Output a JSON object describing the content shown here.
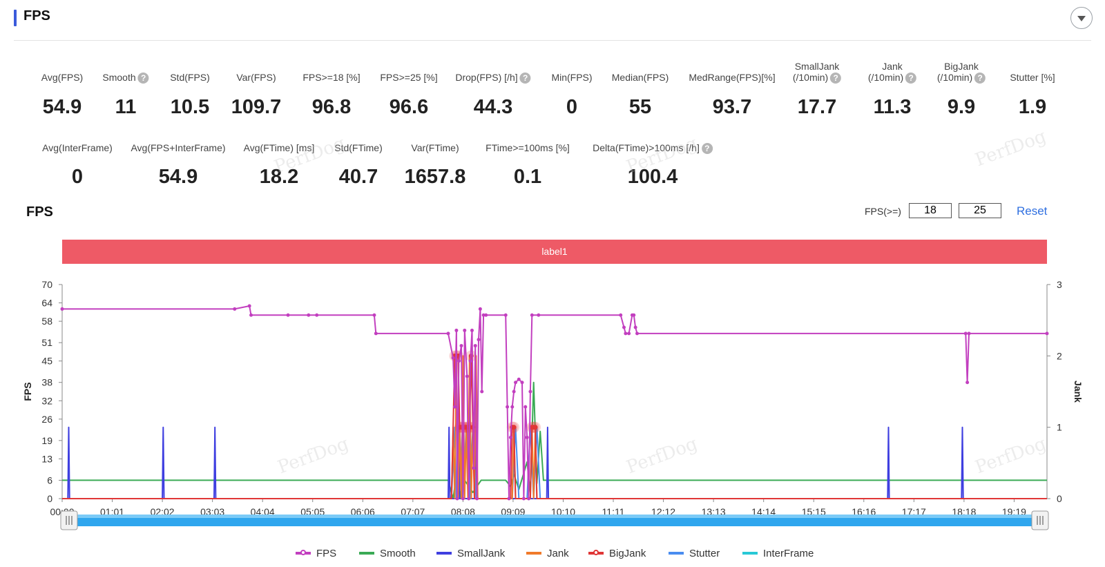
{
  "header": {
    "title": "FPS"
  },
  "metrics_row1": [
    {
      "label": "Avg(FPS)",
      "value": "54.9",
      "help": false
    },
    {
      "label": "Smooth",
      "value": "11",
      "help": true
    },
    {
      "label": "Std(FPS)",
      "value": "10.5",
      "help": false
    },
    {
      "label": "Var(FPS)",
      "value": "109.7",
      "help": false
    },
    {
      "label": "FPS>=18 [%]",
      "value": "96.8",
      "help": false
    },
    {
      "label": "FPS>=25 [%]",
      "value": "96.6",
      "help": false
    },
    {
      "label": "Drop(FPS) [/h]",
      "value": "44.3",
      "help": true
    },
    {
      "label": "Min(FPS)",
      "value": "0",
      "help": false
    },
    {
      "label": "Median(FPS)",
      "value": "55",
      "help": false
    },
    {
      "label": "MedRange(FPS)[%]",
      "value": "93.7",
      "help": false
    },
    {
      "label": "SmallJank",
      "label2": "(/10min)",
      "value": "17.7",
      "help": true
    },
    {
      "label": "Jank",
      "label2": "(/10min)",
      "value": "11.3",
      "help": true
    },
    {
      "label": "BigJank",
      "label2": "(/10min)",
      "value": "9.9",
      "help": true
    },
    {
      "label": "Stutter [%]",
      "value": "1.9",
      "help": false
    }
  ],
  "metrics_row2": [
    {
      "label": "Avg(InterFrame)",
      "value": "0",
      "help": false
    },
    {
      "label": "Avg(FPS+InterFrame)",
      "value": "54.9",
      "help": false
    },
    {
      "label": "Avg(FTime) [ms]",
      "value": "18.2",
      "help": false
    },
    {
      "label": "Std(FTime)",
      "value": "40.7",
      "help": false
    },
    {
      "label": "Var(FTime)",
      "value": "1657.8",
      "help": false
    },
    {
      "label": "FTime>=100ms [%]",
      "value": "0.1",
      "help": false
    },
    {
      "label": "Delta(FTime)>100ms [/h]",
      "value": "100.4",
      "help": true
    }
  ],
  "watermark": "PerfDog",
  "help_glyph": "?",
  "chart_section": {
    "title": "FPS",
    "threshold_label": "FPS(>=)",
    "threshold_low": "18",
    "threshold_high": "25",
    "reset_label": "Reset",
    "label_bar": "label1"
  },
  "chart_data": {
    "type": "line",
    "ylabel": "FPS",
    "y2label": "Jank",
    "ylim": [
      0,
      70
    ],
    "y2lim": [
      0,
      3
    ],
    "yticks": [
      "0",
      "6",
      "13",
      "19",
      "26",
      "32",
      "38",
      "45",
      "51",
      "58",
      "64",
      "70"
    ],
    "y2ticks": [
      "0",
      "1",
      "2",
      "3"
    ],
    "xticks": [
      "00:00",
      "01:01",
      "02:02",
      "03:03",
      "04:04",
      "05:05",
      "06:06",
      "07:07",
      "08:08",
      "09:09",
      "10:10",
      "11:11",
      "12:12",
      "13:13",
      "14:14",
      "15:15",
      "16:16",
      "17:17",
      "18:18",
      "19:19"
    ],
    "x_range_seconds": [
      0,
      1199
    ],
    "grid": false,
    "legend_position": "bottom",
    "series": [
      {
        "name": "FPS",
        "axis": "left",
        "color": "#c23fbf",
        "marker": true,
        "points": [
          [
            0,
            62
          ],
          [
            210,
            62
          ],
          [
            228,
            63
          ],
          [
            230,
            60
          ],
          [
            275,
            60
          ],
          [
            300,
            60
          ],
          [
            310,
            60
          ],
          [
            380,
            60
          ],
          [
            382,
            54
          ],
          [
            470,
            54
          ],
          [
            476,
            46
          ],
          [
            478,
            30
          ],
          [
            480,
            55
          ],
          [
            481,
            0
          ],
          [
            483,
            45
          ],
          [
            486,
            50
          ],
          [
            488,
            0
          ],
          [
            490,
            55
          ],
          [
            493,
            40
          ],
          [
            495,
            0
          ],
          [
            497,
            45
          ],
          [
            499,
            55
          ],
          [
            501,
            10
          ],
          [
            503,
            50
          ],
          [
            505,
            0
          ],
          [
            507,
            52
          ],
          [
            509,
            62
          ],
          [
            511,
            35
          ],
          [
            513,
            60
          ],
          [
            516,
            60
          ],
          [
            540,
            60
          ],
          [
            542,
            30
          ],
          [
            544,
            0
          ],
          [
            546,
            20
          ],
          [
            548,
            30
          ],
          [
            550,
            35
          ],
          [
            552,
            38
          ],
          [
            556,
            39
          ],
          [
            560,
            38
          ],
          [
            562,
            0
          ],
          [
            564,
            30
          ],
          [
            566,
            20
          ],
          [
            568,
            0
          ],
          [
            570,
            35
          ],
          [
            572,
            60
          ],
          [
            580,
            60
          ],
          [
            680,
            60
          ],
          [
            684,
            56
          ],
          [
            686,
            54
          ],
          [
            690,
            54
          ],
          [
            694,
            60
          ],
          [
            696,
            60
          ],
          [
            698,
            56
          ],
          [
            700,
            54
          ],
          [
            1100,
            54
          ],
          [
            1102,
            38
          ],
          [
            1104,
            54
          ],
          [
            1199,
            54
          ]
        ]
      },
      {
        "name": "Smooth",
        "axis": "left",
        "color": "#3aaa55",
        "marker": false,
        "points": [
          [
            0,
            6
          ],
          [
            470,
            6
          ],
          [
            476,
            0
          ],
          [
            480,
            8
          ],
          [
            486,
            0
          ],
          [
            490,
            6
          ],
          [
            500,
            2
          ],
          [
            510,
            6
          ],
          [
            540,
            6
          ],
          [
            546,
            4
          ],
          [
            550,
            8
          ],
          [
            556,
            3
          ],
          [
            566,
            12
          ],
          [
            570,
            2
          ],
          [
            574,
            38
          ],
          [
            578,
            5
          ],
          [
            582,
            22
          ],
          [
            586,
            6
          ],
          [
            600,
            6
          ],
          [
            1199,
            6
          ]
        ]
      },
      {
        "name": "SmallJank",
        "axis": "right",
        "color": "#3f3fe0",
        "marker": false,
        "points": [
          [
            0,
            0
          ],
          [
            7,
            0
          ],
          [
            8,
            1
          ],
          [
            9,
            0
          ],
          [
            122,
            0
          ],
          [
            123,
            1
          ],
          [
            124,
            0
          ],
          [
            185,
            0
          ],
          [
            186,
            1
          ],
          [
            187,
            0
          ],
          [
            470,
            0
          ],
          [
            471,
            1
          ],
          [
            472,
            0
          ],
          [
            482,
            0
          ],
          [
            483,
            1
          ],
          [
            484,
            0
          ],
          [
            496,
            0
          ],
          [
            497,
            1
          ],
          [
            498,
            0
          ],
          [
            502,
            0
          ],
          [
            503,
            1
          ],
          [
            504,
            0
          ],
          [
            590,
            0
          ],
          [
            591,
            1
          ],
          [
            592,
            0
          ],
          [
            1005,
            0
          ],
          [
            1006,
            1
          ],
          [
            1007,
            0
          ],
          [
            1095,
            0
          ],
          [
            1096,
            1
          ],
          [
            1097,
            0
          ],
          [
            1199,
            0
          ]
        ]
      },
      {
        "name": "Jank",
        "axis": "right",
        "color": "#f07a2a",
        "marker": false,
        "points": [
          [
            0,
            0
          ],
          [
            474,
            0
          ],
          [
            476,
            1
          ],
          [
            478,
            0
          ],
          [
            480,
            2
          ],
          [
            482,
            0
          ],
          [
            484,
            1
          ],
          [
            486,
            0
          ],
          [
            488,
            2
          ],
          [
            490,
            0
          ],
          [
            492,
            1
          ],
          [
            494,
            0
          ],
          [
            496,
            2
          ],
          [
            498,
            0
          ],
          [
            500,
            1
          ],
          [
            502,
            0
          ],
          [
            504,
            2
          ],
          [
            506,
            0
          ],
          [
            548,
            0
          ],
          [
            550,
            1
          ],
          [
            552,
            0
          ],
          [
            570,
            0
          ],
          [
            572,
            1
          ],
          [
            574,
            0
          ],
          [
            576,
            1
          ],
          [
            578,
            0
          ],
          [
            1199,
            0
          ]
        ]
      },
      {
        "name": "BigJank",
        "axis": "right",
        "color": "#e03636",
        "marker": true,
        "points": [
          [
            0,
            0
          ],
          [
            474,
            0
          ],
          [
            478,
            2
          ],
          [
            480,
            2
          ],
          [
            482,
            2
          ],
          [
            484,
            1
          ],
          [
            486,
            1
          ],
          [
            488,
            1
          ],
          [
            490,
            1
          ],
          [
            492,
            1
          ],
          [
            494,
            1
          ],
          [
            496,
            1
          ],
          [
            498,
            2
          ],
          [
            500,
            1
          ],
          [
            502,
            0
          ],
          [
            546,
            0
          ],
          [
            548,
            1
          ],
          [
            550,
            1
          ],
          [
            552,
            0
          ],
          [
            570,
            0
          ],
          [
            572,
            1
          ],
          [
            574,
            1
          ],
          [
            576,
            1
          ],
          [
            578,
            0
          ],
          [
            1199,
            0
          ]
        ]
      },
      {
        "name": "Stutter",
        "axis": "right",
        "color": "#4a8df0",
        "marker": false,
        "points": [
          [
            0,
            0
          ],
          [
            474,
            0
          ],
          [
            478,
            1
          ],
          [
            480,
            0
          ],
          [
            484,
            1
          ],
          [
            488,
            0
          ],
          [
            492,
            1
          ],
          [
            496,
            0
          ],
          [
            500,
            1
          ],
          [
            504,
            0
          ],
          [
            548,
            0
          ],
          [
            552,
            1
          ],
          [
            556,
            0
          ],
          [
            566,
            0
          ],
          [
            570,
            1
          ],
          [
            574,
            0
          ],
          [
            578,
            1
          ],
          [
            582,
            0
          ],
          [
            1199,
            0
          ]
        ]
      },
      {
        "name": "InterFrame",
        "axis": "left",
        "color": "#28c9d6",
        "marker": false,
        "points": [
          [
            0,
            0
          ],
          [
            1199,
            0
          ]
        ]
      }
    ]
  }
}
